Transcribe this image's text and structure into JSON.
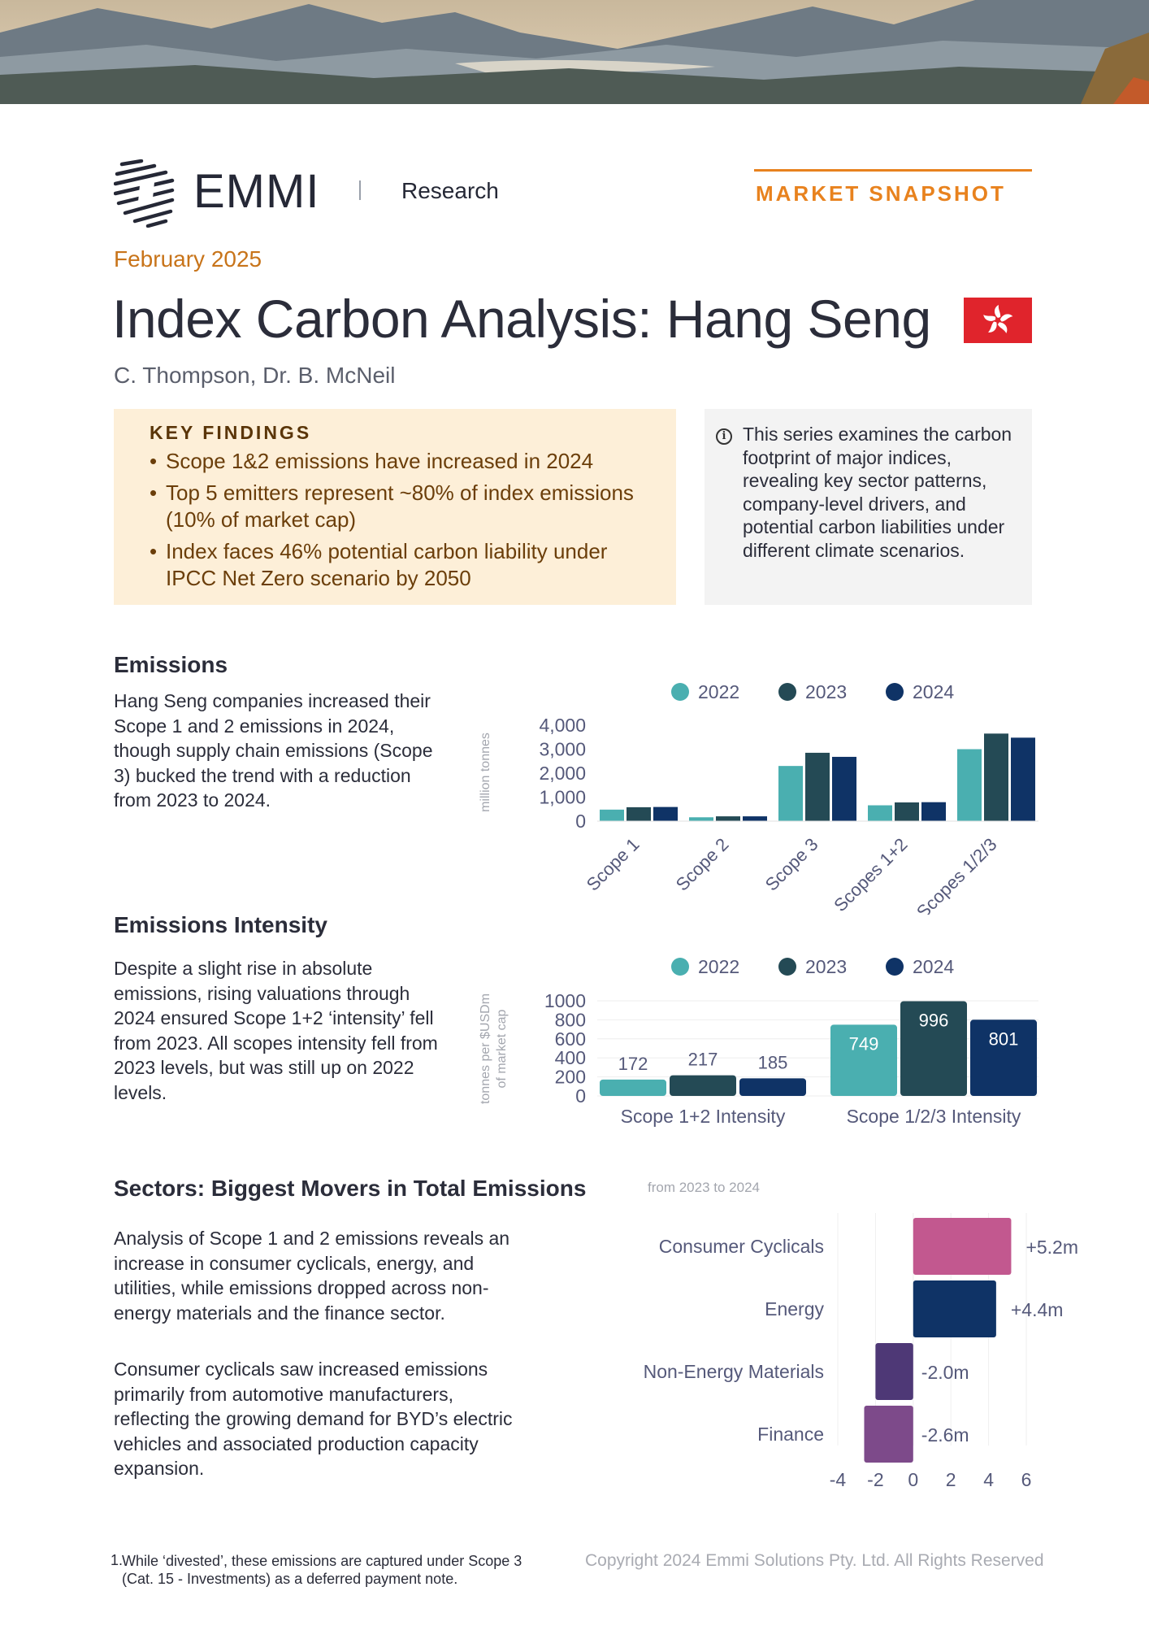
{
  "header": {
    "brand": "EMMI",
    "section": "Research",
    "badge": "MARKET SNAPSHOT"
  },
  "doc": {
    "date": "February 2025",
    "title": "Index Carbon Analysis: Hang Seng",
    "authors": "C. Thompson, Dr. B. McNeil"
  },
  "key_findings": {
    "title": "KEY FINDINGS",
    "items": [
      "Scope 1&2 emissions have increased in 2024",
      "Top 5 emitters represent ~80% of index emissions (10% of market cap)",
      "Index faces 46% potential carbon liability under IPCC Net Zero scenario by 2050"
    ]
  },
  "info": {
    "text": "This series examines the carbon footprint of major indices, revealing key sector patterns, company-level drivers, and potential carbon liabilities under different climate scenarios."
  },
  "emissions": {
    "heading": "Emissions",
    "body": "Hang Seng companies increased their Scope 1 and 2 emissions in 2024, though supply chain emissions (Scope 3) bucked the trend with a reduction from 2023 to 2024."
  },
  "intensity": {
    "heading": "Emissions Intensity",
    "body": "Despite a slight rise in absolute emissions, rising valuations through 2024 ensured Scope 1+2 ‘intensity’ fell from 2023. All scopes intensity fell from 2023 levels, but was still up on 2022 levels."
  },
  "sectors": {
    "heading": "Sectors: Biggest Movers in Total Emissions",
    "body1": "Analysis of Scope 1 and 2 emissions reveals an increase in consumer cyclicals, energy, and utilities, while emissions dropped across non-energy materials and the finance sector.",
    "body2": "Consumer cyclicals saw increased emissions primarily from automotive manufacturers, reflecting the growing demand for BYD’s electric vehicles and associated production capacity expansion."
  },
  "footer": {
    "footnote_number": "1.",
    "footnote": "While ‘divested’, these emissions are captured under Scope 3 (Cat. 15 - Investments) as a deferred payment note.",
    "copyright": "Copyright 2024 Emmi Solutions Pty. Ltd. All Rights Reserved"
  },
  "colors": {
    "y2022": "#4aafb0",
    "y2023": "#244a55",
    "y2024": "#0f3366",
    "consumer": "#c2588f",
    "energy": "#0f3366",
    "materials": "#4e3876",
    "finance": "#7d4a8a",
    "accent": "#e8821e"
  },
  "chart_data": [
    {
      "type": "bar",
      "categories": [
        "Scope 1",
        "Scope 2",
        "Scope 3",
        "Scopes 1+2",
        "Scopes 1/2/3"
      ],
      "series": [
        {
          "name": "2022",
          "values": [
            480,
            160,
            2300,
            660,
            3000
          ]
        },
        {
          "name": "2023",
          "values": [
            580,
            200,
            2850,
            780,
            3650
          ]
        },
        {
          "name": "2024",
          "values": [
            590,
            200,
            2680,
            790,
            3480
          ]
        }
      ],
      "ylabel": "million tonnes",
      "yticks": [
        "4,000",
        "3,000",
        "2,000",
        "1,000",
        "0"
      ],
      "ylim": [
        0,
        4000
      ],
      "legend": "top"
    },
    {
      "type": "bar",
      "categories": [
        "Scope 1+2 Intensity",
        "Scope 1/2/3 Intensity"
      ],
      "series": [
        {
          "name": "2022",
          "values": [
            172,
            749
          ]
        },
        {
          "name": "2023",
          "values": [
            217,
            996
          ]
        },
        {
          "name": "2024",
          "values": [
            185,
            801
          ]
        }
      ],
      "ylabel": "tonnes per $USDm of market cap",
      "yticks": [
        "1000",
        "800",
        "600",
        "400",
        "200",
        "0"
      ],
      "ylim": [
        0,
        1000
      ],
      "legend": "top"
    },
    {
      "type": "bar",
      "orientation": "horizontal",
      "subtitle": "from 2023 to 2024",
      "categories": [
        "Consumer Cyclicals",
        "Energy",
        "Non-Energy Materials",
        "Finance"
      ],
      "values": [
        5.2,
        4.4,
        -2.0,
        -2.6
      ],
      "labels": [
        "+5.2m",
        "+4.4m",
        "-2.0m",
        "-2.6m"
      ],
      "xticks": [
        "-4",
        "-2",
        "0",
        "2",
        "4",
        "6"
      ],
      "xlim": [
        -4,
        6
      ]
    }
  ]
}
